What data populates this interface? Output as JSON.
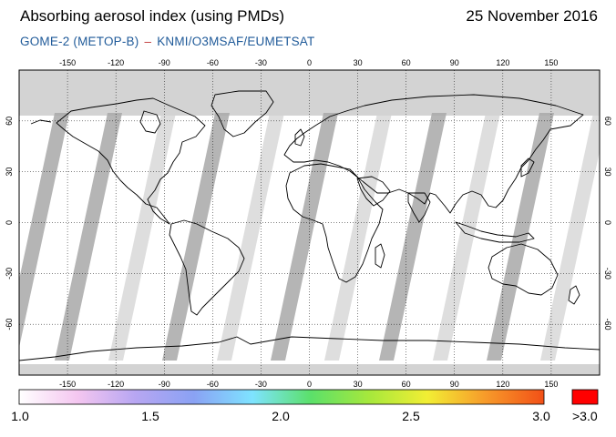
{
  "header": {
    "title": "Absorbing aerosol index (using PMDs)",
    "date": "25 November 2016",
    "instrument": "GOME-2 (METOP-B)",
    "separator": "–",
    "credit": "KNMI/O3MSAF/EUMETSAT"
  },
  "map": {
    "longitude_ticks": [
      "-150",
      "-120",
      "-90",
      "-60",
      "-30",
      "0",
      "30",
      "60",
      "90",
      "120",
      "150"
    ],
    "latitude_ticks": [
      "60",
      "30",
      "0",
      "-30",
      "-60"
    ],
    "colors": {
      "no_data": "#d3d3d3",
      "missing_swath": "#a8a8a8",
      "ocean_land_background": "#ffffff",
      "coastline": "#000000"
    }
  },
  "colorbar": {
    "labels": [
      "1.0",
      "1.5",
      "2.0",
      "2.5",
      "3.0"
    ],
    "overflow_label": ">3.0",
    "overflow_color": "#ff0000",
    "gradient": [
      "#ffffff",
      "#f4c6f0",
      "#b7a6f2",
      "#8aa2f4",
      "#7ee3ff",
      "#5be06a",
      "#a6e83c",
      "#f2ee34",
      "#f79a2a",
      "#f25017"
    ]
  }
}
